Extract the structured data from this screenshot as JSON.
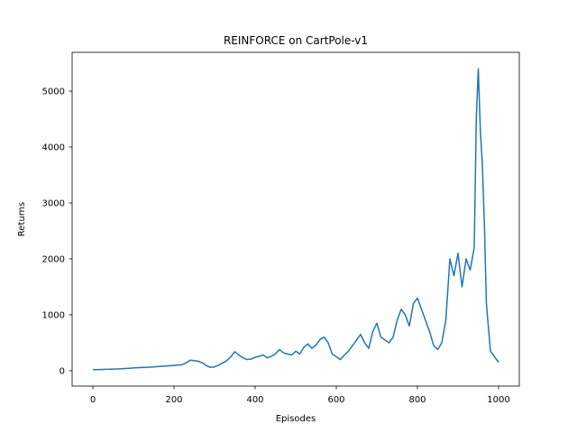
{
  "chart_data": {
    "type": "line",
    "title": "REINFORCE on CartPole-v1",
    "xlabel": "Episodes",
    "ylabel": "Returns",
    "xlim": [
      -50,
      1050
    ],
    "ylim": [
      -250,
      5700
    ],
    "xticks": [
      0,
      200,
      400,
      600,
      800,
      1000
    ],
    "yticks": [
      0,
      1000,
      2000,
      3000,
      4000,
      5000
    ],
    "grid": false,
    "legend": null,
    "series": [
      {
        "name": "returns",
        "color": "#1f77b4",
        "x": [
          0,
          10,
          20,
          30,
          40,
          50,
          60,
          70,
          80,
          90,
          100,
          110,
          120,
          130,
          140,
          150,
          160,
          170,
          180,
          190,
          200,
          210,
          220,
          230,
          240,
          250,
          260,
          270,
          280,
          290,
          300,
          310,
          320,
          330,
          340,
          350,
          360,
          370,
          380,
          390,
          400,
          410,
          420,
          430,
          440,
          450,
          460,
          470,
          480,
          490,
          500,
          510,
          520,
          530,
          540,
          550,
          560,
          570,
          580,
          590,
          600,
          610,
          620,
          630,
          640,
          650,
          660,
          670,
          680,
          690,
          700,
          710,
          720,
          730,
          740,
          750,
          760,
          770,
          780,
          790,
          800,
          810,
          820,
          830,
          840,
          850,
          860,
          870,
          880,
          890,
          900,
          910,
          920,
          930,
          940,
          945,
          950,
          955,
          960,
          965,
          970,
          980,
          990,
          1000
        ],
        "values": [
          20,
          20,
          22,
          25,
          28,
          30,
          32,
          35,
          40,
          45,
          50,
          55,
          58,
          62,
          65,
          70,
          75,
          80,
          85,
          90,
          95,
          100,
          110,
          140,
          190,
          180,
          170,
          140,
          90,
          60,
          70,
          100,
          140,
          180,
          250,
          340,
          280,
          230,
          200,
          210,
          240,
          260,
          280,
          230,
          260,
          300,
          380,
          320,
          300,
          280,
          350,
          300,
          420,
          480,
          400,
          460,
          560,
          600,
          500,
          300,
          250,
          200,
          280,
          350,
          450,
          550,
          650,
          500,
          400,
          700,
          850,
          600,
          550,
          500,
          600,
          900,
          1100,
          1000,
          800,
          1200,
          1300,
          1100,
          900,
          700,
          450,
          380,
          500,
          900,
          2000,
          1700,
          2100,
          1500,
          2000,
          1800,
          2200,
          4500,
          5400,
          4300,
          3700,
          2600,
          1200,
          350,
          250,
          150
        ]
      }
    ]
  }
}
